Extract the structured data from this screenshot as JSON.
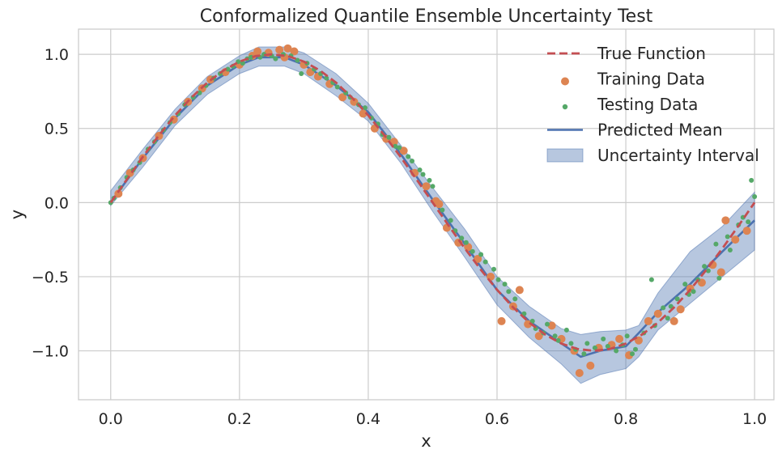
{
  "chart_data": {
    "type": "line",
    "title": "Conformalized Quantile Ensemble Uncertainty Test",
    "xlabel": "x",
    "ylabel": "y",
    "xlim": [
      -0.05,
      1.03
    ],
    "ylim": [
      -1.33,
      1.17
    ],
    "grid": true,
    "legend_position": "top-right",
    "xticks": [
      0.0,
      0.2,
      0.4,
      0.6,
      0.8,
      1.0
    ],
    "xtick_labels": [
      "0.0",
      "0.2",
      "0.4",
      "0.6",
      "0.8",
      "1.0"
    ],
    "yticks": [
      1.0,
      0.5,
      0.0,
      -0.5,
      -1.0
    ],
    "ytick_labels": [
      "1.0",
      "0.5",
      "0.0",
      "−0.5",
      "−1.0"
    ],
    "colors": {
      "true_function": "#c44e52",
      "training": "#dd8452",
      "testing": "#55a868",
      "predicted": "#4c72b0",
      "interval": "#4c72b0"
    },
    "series": [
      {
        "name": "True Function",
        "kind": "line-dashed",
        "x": [
          0.0,
          0.025,
          0.05,
          0.075,
          0.1,
          0.125,
          0.15,
          0.175,
          0.2,
          0.225,
          0.25,
          0.275,
          0.3,
          0.325,
          0.35,
          0.375,
          0.4,
          0.425,
          0.45,
          0.475,
          0.5,
          0.525,
          0.55,
          0.575,
          0.6,
          0.625,
          0.65,
          0.675,
          0.7,
          0.725,
          0.75,
          0.775,
          0.8,
          0.825,
          0.85,
          0.875,
          0.9,
          0.925,
          0.95,
          0.975,
          1.0
        ],
        "y": [
          0.0,
          0.156,
          0.309,
          0.454,
          0.588,
          0.707,
          0.809,
          0.891,
          0.951,
          0.988,
          1.0,
          0.988,
          0.951,
          0.891,
          0.809,
          0.707,
          0.588,
          0.454,
          0.309,
          0.156,
          0.0,
          -0.156,
          -0.309,
          -0.454,
          -0.588,
          -0.707,
          -0.809,
          -0.891,
          -0.951,
          -0.988,
          -1.0,
          -0.988,
          -0.951,
          -0.891,
          -0.809,
          -0.707,
          -0.588,
          -0.454,
          -0.309,
          -0.156,
          0.0
        ]
      },
      {
        "name": "Predicted Mean",
        "kind": "line",
        "x": [
          0.0,
          0.05,
          0.1,
          0.15,
          0.2,
          0.23,
          0.27,
          0.3,
          0.35,
          0.4,
          0.45,
          0.5,
          0.55,
          0.6,
          0.65,
          0.7,
          0.73,
          0.76,
          0.8,
          0.82,
          0.85,
          0.9,
          0.95,
          1.0
        ],
        "y": [
          0.0,
          0.3,
          0.57,
          0.79,
          0.93,
          0.98,
          0.98,
          0.93,
          0.79,
          0.61,
          0.33,
          0.02,
          -0.28,
          -0.59,
          -0.8,
          -0.95,
          -1.04,
          -1.0,
          -0.97,
          -0.88,
          -0.74,
          -0.55,
          -0.33,
          -0.12
        ]
      },
      {
        "name": "Uncertainty Interval",
        "kind": "band",
        "x": [
          0.0,
          0.05,
          0.1,
          0.15,
          0.2,
          0.23,
          0.27,
          0.3,
          0.35,
          0.4,
          0.45,
          0.5,
          0.55,
          0.6,
          0.65,
          0.7,
          0.73,
          0.76,
          0.8,
          0.82,
          0.85,
          0.9,
          0.95,
          1.0
        ],
        "upper": [
          0.08,
          0.36,
          0.63,
          0.85,
          0.99,
          1.05,
          1.05,
          1.01,
          0.87,
          0.67,
          0.39,
          0.1,
          -0.18,
          -0.5,
          -0.7,
          -0.85,
          -0.89,
          -0.87,
          -0.86,
          -0.83,
          -0.61,
          -0.33,
          -0.16,
          0.07
        ],
        "lower": [
          -0.02,
          0.24,
          0.52,
          0.73,
          0.87,
          0.92,
          0.92,
          0.87,
          0.72,
          0.55,
          0.27,
          -0.06,
          -0.37,
          -0.69,
          -0.91,
          -1.09,
          -1.22,
          -1.16,
          -1.12,
          -1.04,
          -0.86,
          -0.68,
          -0.5,
          -0.32
        ]
      },
      {
        "name": "Training Data",
        "kind": "scatter",
        "size": 5,
        "x": [
          0.012,
          0.03,
          0.05,
          0.075,
          0.098,
          0.12,
          0.142,
          0.155,
          0.178,
          0.2,
          0.22,
          0.228,
          0.245,
          0.262,
          0.27,
          0.275,
          0.285,
          0.3,
          0.31,
          0.322,
          0.34,
          0.36,
          0.378,
          0.392,
          0.41,
          0.428,
          0.44,
          0.455,
          0.472,
          0.49,
          0.505,
          0.51,
          0.522,
          0.54,
          0.555,
          0.57,
          0.59,
          0.607,
          0.625,
          0.635,
          0.648,
          0.665,
          0.685,
          0.7,
          0.72,
          0.728,
          0.745,
          0.758,
          0.778,
          0.79,
          0.805,
          0.82,
          0.835,
          0.85,
          0.875,
          0.885,
          0.9,
          0.918,
          0.935,
          0.948,
          0.955,
          0.97,
          0.988
        ],
        "y": [
          0.06,
          0.2,
          0.3,
          0.45,
          0.56,
          0.68,
          0.77,
          0.83,
          0.88,
          0.93,
          0.99,
          1.02,
          1.01,
          1.03,
          0.98,
          1.04,
          1.02,
          0.93,
          0.88,
          0.85,
          0.8,
          0.71,
          0.68,
          0.6,
          0.5,
          0.43,
          0.41,
          0.35,
          0.2,
          0.11,
          0.01,
          -0.01,
          -0.17,
          -0.27,
          -0.3,
          -0.38,
          -0.5,
          -0.8,
          -0.7,
          -0.59,
          -0.82,
          -0.9,
          -0.83,
          -0.92,
          -1.0,
          -1.15,
          -1.1,
          -0.98,
          -0.96,
          -0.92,
          -1.03,
          -0.93,
          -0.8,
          -0.75,
          -0.8,
          -0.72,
          -0.58,
          -0.54,
          -0.42,
          -0.47,
          -0.12,
          -0.25,
          -0.19
        ]
      },
      {
        "name": "Testing Data",
        "kind": "scatter",
        "size": 3,
        "x": [
          0.0,
          0.005,
          0.015,
          0.025,
          0.035,
          0.045,
          0.058,
          0.068,
          0.082,
          0.092,
          0.105,
          0.115,
          0.128,
          0.138,
          0.148,
          0.16,
          0.17,
          0.182,
          0.19,
          0.198,
          0.205,
          0.212,
          0.218,
          0.232,
          0.238,
          0.25,
          0.256,
          0.268,
          0.28,
          0.29,
          0.296,
          0.305,
          0.316,
          0.326,
          0.335,
          0.345,
          0.352,
          0.365,
          0.372,
          0.385,
          0.395,
          0.405,
          0.415,
          0.422,
          0.432,
          0.442,
          0.448,
          0.462,
          0.468,
          0.48,
          0.485,
          0.495,
          0.5,
          0.515,
          0.528,
          0.535,
          0.545,
          0.552,
          0.562,
          0.575,
          0.582,
          0.595,
          0.602,
          0.612,
          0.618,
          0.628,
          0.642,
          0.655,
          0.66,
          0.672,
          0.678,
          0.69,
          0.695,
          0.708,
          0.715,
          0.722,
          0.735,
          0.74,
          0.752,
          0.765,
          0.772,
          0.785,
          0.795,
          0.802,
          0.81,
          0.815,
          0.828,
          0.84,
          0.845,
          0.858,
          0.865,
          0.87,
          0.88,
          0.892,
          0.898,
          0.905,
          0.912,
          0.922,
          0.928,
          0.94,
          0.945,
          0.958,
          0.962,
          0.975,
          0.982,
          0.99,
          0.995,
          1.0
        ],
        "y": [
          0.0,
          0.03,
          0.1,
          0.17,
          0.22,
          0.27,
          0.36,
          0.41,
          0.49,
          0.54,
          0.6,
          0.66,
          0.71,
          0.74,
          0.79,
          0.84,
          0.87,
          0.9,
          0.92,
          0.95,
          0.94,
          0.97,
          0.98,
          0.98,
          1.0,
          0.99,
          0.97,
          1.0,
          0.99,
          0.96,
          0.87,
          0.94,
          0.9,
          0.87,
          0.84,
          0.81,
          0.78,
          0.74,
          0.71,
          0.66,
          0.64,
          0.57,
          0.53,
          0.46,
          0.44,
          0.38,
          0.37,
          0.31,
          0.28,
          0.22,
          0.19,
          0.15,
          0.11,
          -0.05,
          -0.12,
          -0.19,
          -0.24,
          -0.27,
          -0.33,
          -0.35,
          -0.4,
          -0.45,
          -0.52,
          -0.55,
          -0.6,
          -0.65,
          -0.75,
          -0.8,
          -0.85,
          -0.88,
          -0.82,
          -0.9,
          -0.93,
          -0.86,
          -0.95,
          -0.99,
          -1.02,
          -0.95,
          -0.98,
          -0.92,
          -0.97,
          -1.0,
          -0.96,
          -0.9,
          -1.02,
          -0.99,
          -0.88,
          -0.52,
          -0.83,
          -0.71,
          -0.78,
          -0.7,
          -0.65,
          -0.55,
          -0.62,
          -0.6,
          -0.52,
          -0.43,
          -0.46,
          -0.28,
          -0.51,
          -0.23,
          -0.32,
          -0.15,
          -0.1,
          -0.13,
          0.15,
          0.04
        ]
      }
    ]
  }
}
